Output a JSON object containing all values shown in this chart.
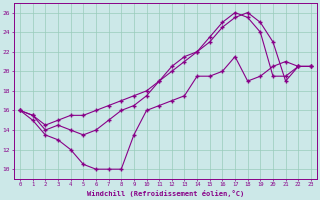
{
  "xlabel": "Windchill (Refroidissement éolien,°C)",
  "xlim": [
    -0.5,
    23.5
  ],
  "ylim": [
    9,
    27
  ],
  "yticks": [
    10,
    12,
    14,
    16,
    18,
    20,
    22,
    24,
    26
  ],
  "xticks": [
    0,
    1,
    2,
    3,
    4,
    5,
    6,
    7,
    8,
    9,
    10,
    11,
    12,
    13,
    14,
    15,
    16,
    17,
    18,
    19,
    20,
    21,
    22,
    23
  ],
  "bg_color": "#cce8e8",
  "line_color": "#880088",
  "grid_color": "#99ccbb",
  "line1_x": [
    0,
    1,
    2,
    3,
    4,
    5,
    6,
    7,
    8,
    9,
    10,
    11,
    12,
    13,
    14,
    15,
    16,
    17,
    18,
    19,
    20,
    21,
    22,
    23
  ],
  "line1_y": [
    16,
    15,
    13.5,
    13,
    12,
    10.5,
    10,
    10,
    10,
    13.5,
    16,
    16.5,
    17,
    17.5,
    19.5,
    19.5,
    20,
    21.5,
    19,
    19.5,
    20.5,
    21,
    20.5,
    20.5
  ],
  "line2_x": [
    0,
    1,
    2,
    3,
    4,
    5,
    6,
    7,
    8,
    9,
    10,
    11,
    12,
    13,
    14,
    15,
    16,
    17,
    18,
    19,
    20,
    21,
    22,
    23
  ],
  "line2_y": [
    16,
    15.5,
    14,
    14.5,
    14,
    13.5,
    14,
    15,
    16,
    16.5,
    17.5,
    19,
    20.5,
    21.5,
    22,
    23.5,
    25,
    26,
    25.5,
    24,
    19.5,
    19.5,
    20.5,
    20.5
  ],
  "line3_x": [
    0,
    1,
    2,
    3,
    4,
    5,
    6,
    7,
    8,
    9,
    10,
    11,
    12,
    13,
    14,
    15,
    16,
    17,
    18,
    19,
    20,
    21,
    22,
    23
  ],
  "line3_y": [
    16,
    15.5,
    14.5,
    15,
    15.5,
    15.5,
    16,
    16.5,
    17,
    17.5,
    18,
    19,
    20,
    21,
    22,
    23,
    24.5,
    25.5,
    26,
    25,
    23,
    19,
    20.5,
    20.5
  ]
}
